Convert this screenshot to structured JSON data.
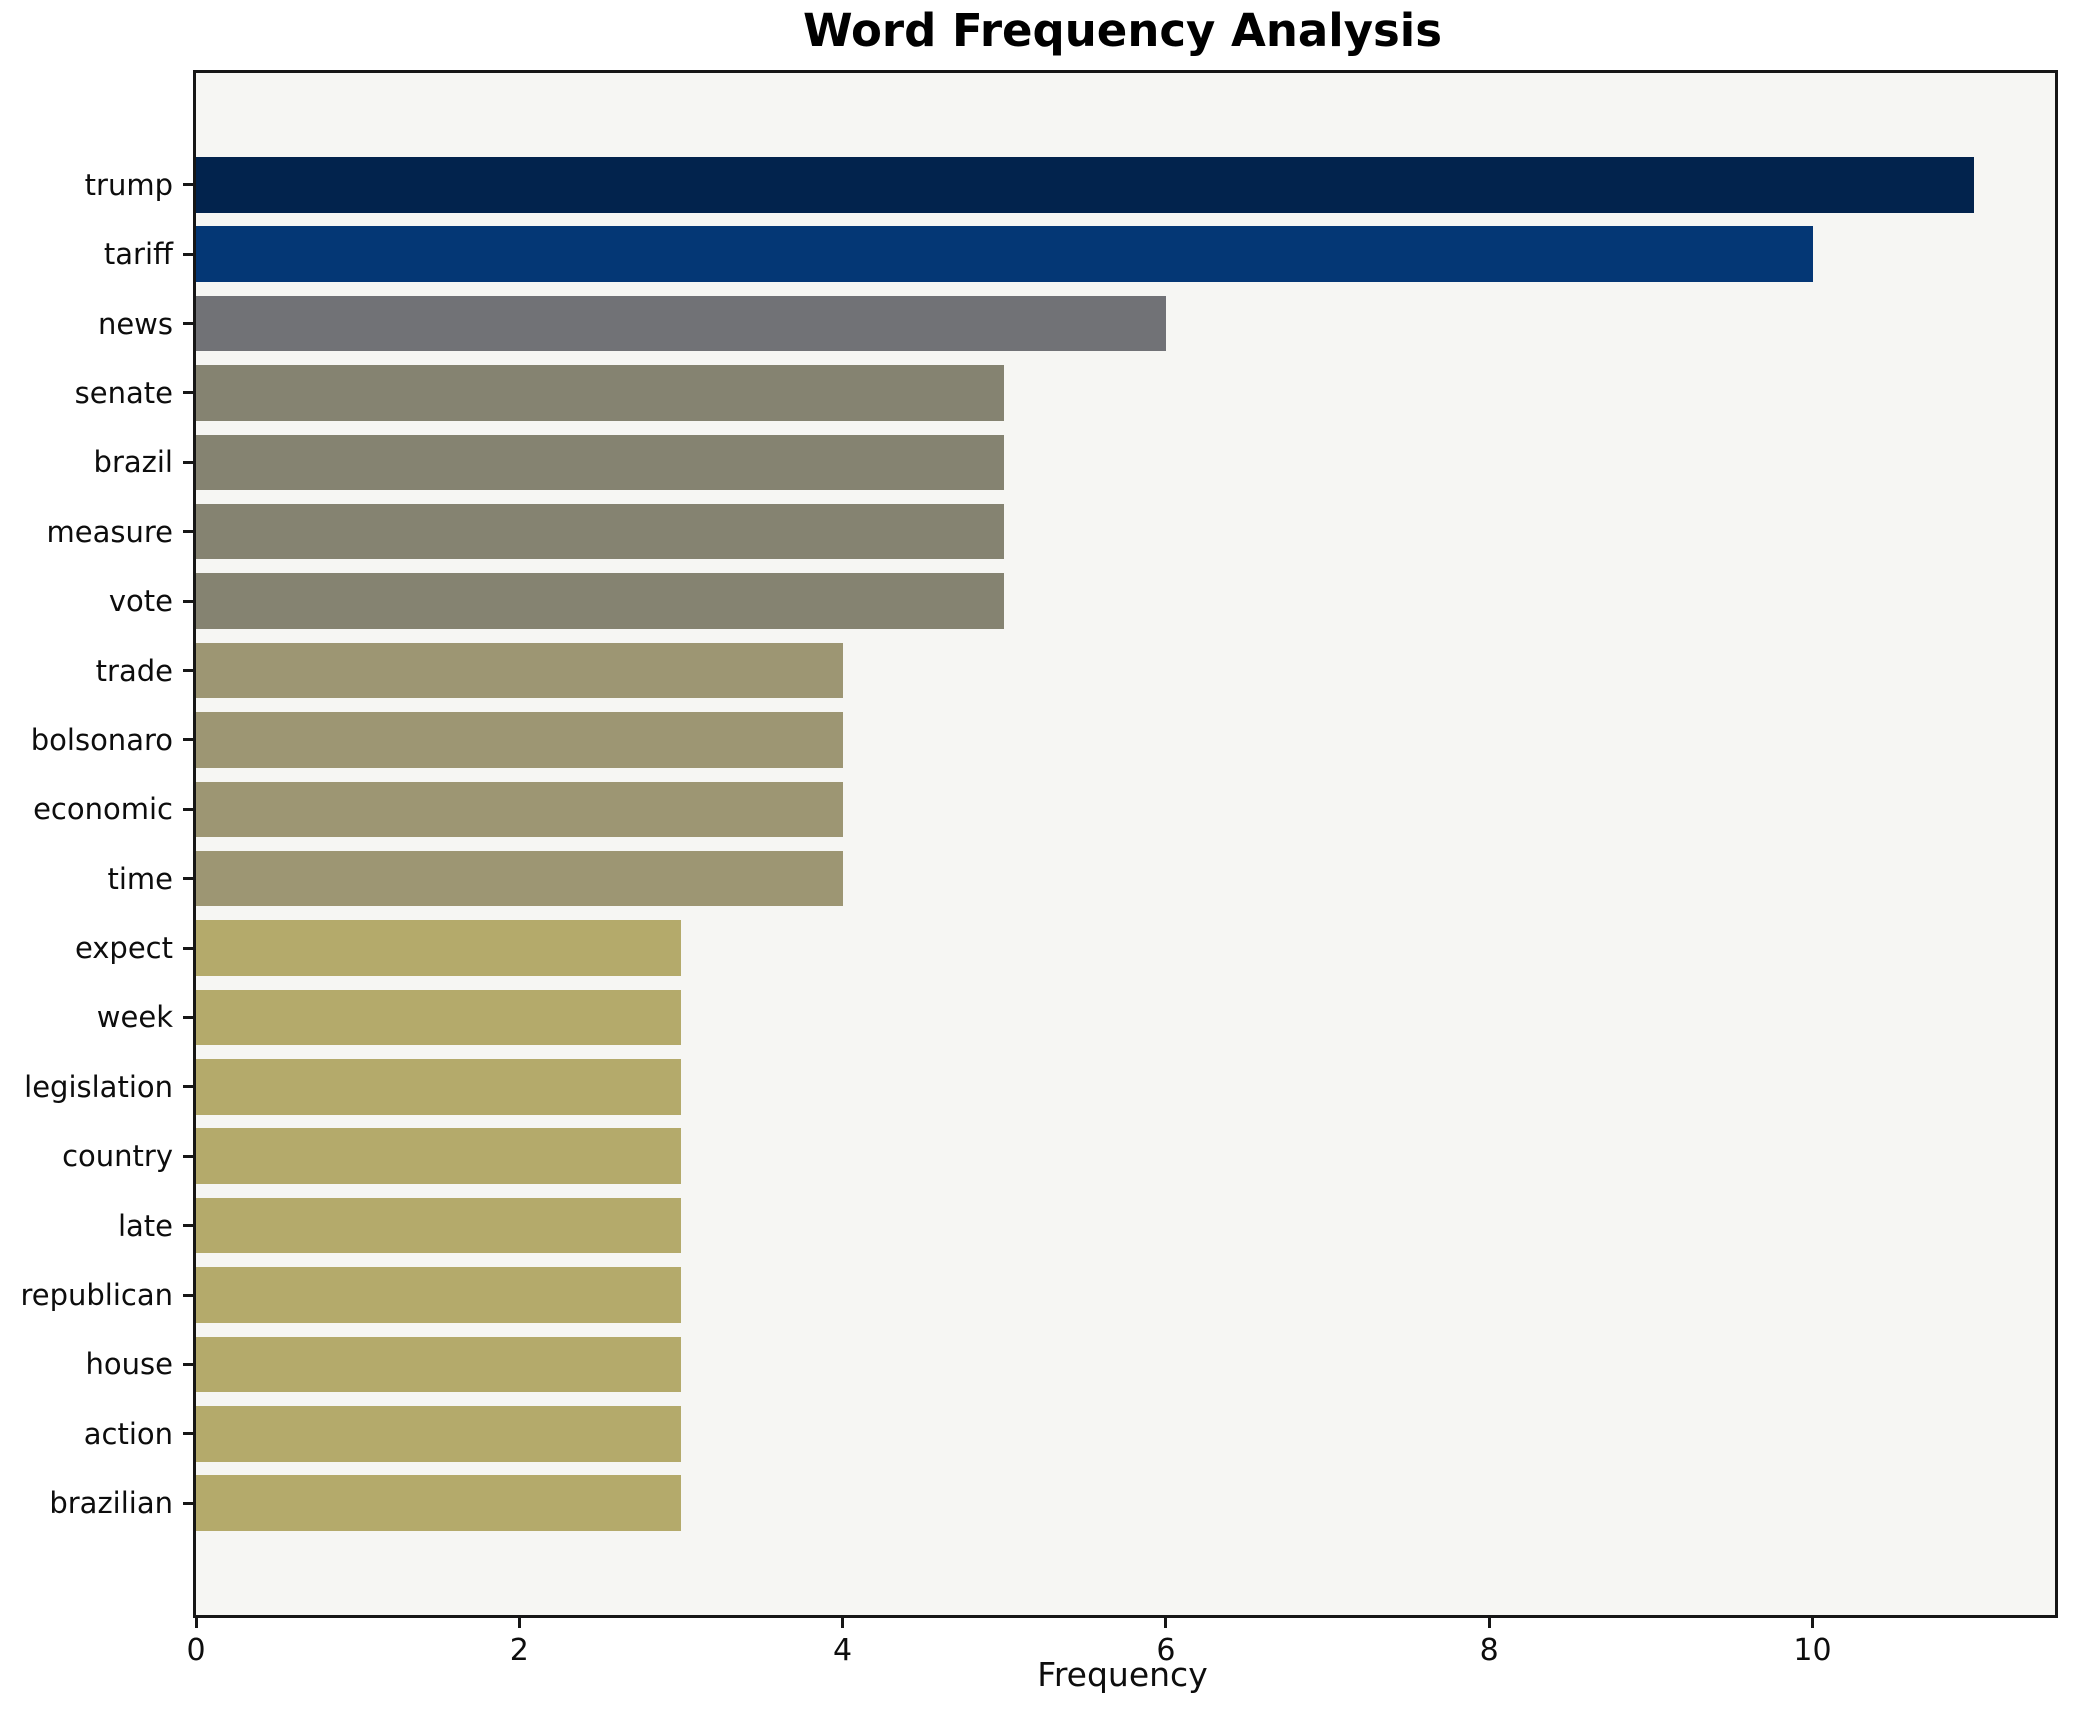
{
  "title": "Word Frequency Analysis",
  "chart_data": {
    "type": "bar",
    "orientation": "horizontal",
    "title": "Word Frequency Analysis",
    "xlabel": "Frequency",
    "ylabel": "",
    "categories": [
      "trump",
      "tariff",
      "news",
      "senate",
      "brazil",
      "measure",
      "vote",
      "trade",
      "bolsonaro",
      "economic",
      "time",
      "expect",
      "week",
      "legislation",
      "country",
      "late",
      "republican",
      "house",
      "action",
      "brazilian"
    ],
    "values": [
      11,
      10,
      6,
      5,
      5,
      5,
      5,
      4,
      4,
      4,
      4,
      3,
      3,
      3,
      3,
      3,
      3,
      3,
      3,
      3
    ],
    "bar_colors": [
      "#02234d",
      "#043775",
      "#717276",
      "#858371",
      "#858371",
      "#858371",
      "#858371",
      "#9d9673",
      "#9d9673",
      "#9d9673",
      "#9d9673",
      "#b4aa6b",
      "#b4aa6b",
      "#b4aa6b",
      "#b4aa6b",
      "#b4aa6b",
      "#b4aa6b",
      "#b4aa6b",
      "#b4aa6b",
      "#b4aa6b"
    ],
    "xlim": [
      0,
      11.5
    ],
    "xticks": [
      0,
      2,
      4,
      6,
      8,
      10
    ],
    "xtick_labels": [
      "0",
      "2",
      "4",
      "6",
      "8",
      "10"
    ],
    "grid": false,
    "legend": "none",
    "plot_background": "#f6f6f3",
    "figure_background": "#ffffff",
    "spine_color": "#161616",
    "bar_height_fraction": 0.8,
    "y_margin_fraction": 0.05
  }
}
